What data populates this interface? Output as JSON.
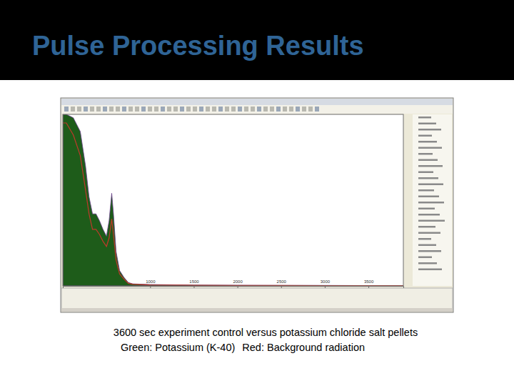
{
  "chart_data": {
    "type": "area",
    "title": "Pulse Processing Results",
    "caption": "3600 sec experiment control versus potassium chloride salt pellets",
    "x": [
      0,
      40,
      120,
      200,
      260,
      300,
      340,
      380,
      420,
      460,
      500,
      530,
      560,
      580,
      610,
      650,
      700,
      750,
      800,
      1000,
      1500,
      2000,
      2500,
      3000,
      3500,
      3900
    ],
    "series": [
      {
        "name": "Green: Potassium (K-40)",
        "color": "#1e5c1a",
        "values": [
          1000,
          1000,
          980,
          900,
          700,
          520,
          420,
          420,
          380,
          330,
          290,
          380,
          540,
          420,
          200,
          90,
          50,
          20,
          12,
          8,
          5,
          4,
          3,
          3,
          2,
          2
        ]
      },
      {
        "name": "Red: Background radiation",
        "color": "#c0392b",
        "values": [
          950,
          950,
          880,
          760,
          560,
          420,
          330,
          330,
          300,
          260,
          230,
          280,
          390,
          300,
          150,
          70,
          40,
          15,
          10,
          6,
          4,
          3,
          3,
          2,
          2,
          2
        ]
      }
    ],
    "xlim": [
      0,
      3900
    ],
    "xticks": [
      1000,
      1500,
      2000,
      2500,
      3000,
      3500
    ],
    "ylim": [
      0,
      1000
    ],
    "tick_labels": "x"
  }
}
